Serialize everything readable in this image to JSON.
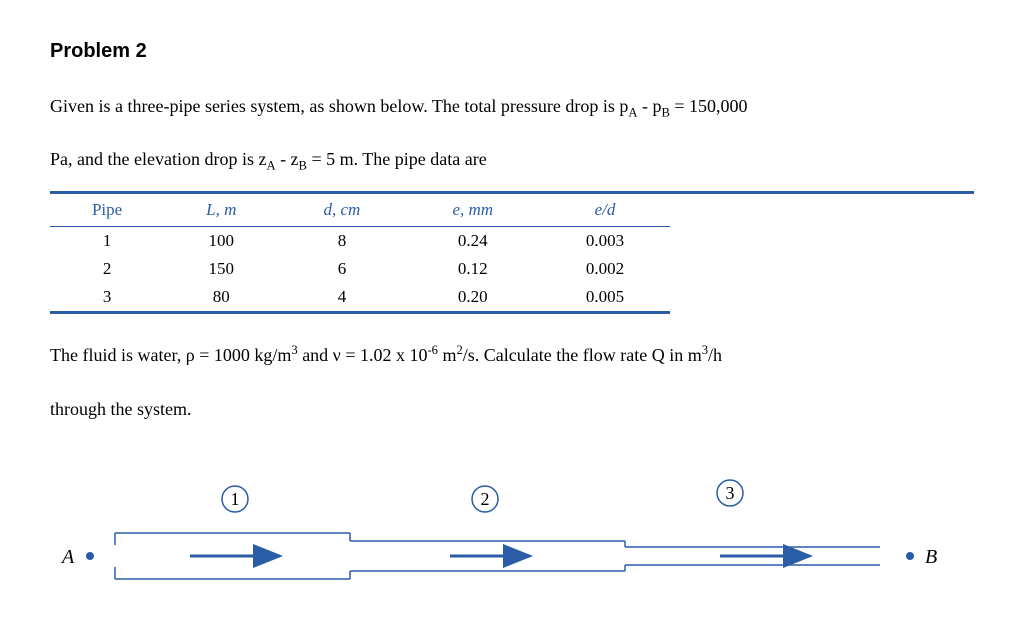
{
  "title": "Problem 2",
  "para1_pre": "Given is a three-pipe series system, as shown below. The total pressure drop is p",
  "para1_subA": "A",
  "para1_mid1": " - p",
  "para1_subB": "B",
  "para1_mid2": " = ",
  "para1_val": "150,000",
  "para2_pre": "Pa, and the elevation drop is z",
  "para2_subA": "A",
  "para2_mid1": " - z",
  "para2_subB": "B",
  "para2_mid2": " = ",
  "para2_val": "5 m",
  "para2_end": ". The pipe data are",
  "table": {
    "columns": [
      "Pipe",
      "L, m",
      "d, cm",
      "e, mm",
      "e/d"
    ],
    "rows": [
      [
        "1",
        "100",
        "8",
        "0.24",
        "0.003"
      ],
      [
        "2",
        "150",
        "6",
        "0.12",
        "0.002"
      ],
      [
        "3",
        "80",
        "4",
        "0.20",
        "0.005"
      ]
    ],
    "border_color": "#2a5ca8",
    "header_color": "#2a5ca8"
  },
  "para3_pre": "The fluid is water, ρ = ",
  "para3_rho": "1000 kg/m",
  "para3_sup3a": "3",
  "para3_mid1": " and ν = ",
  "para3_nu": "1.02 x 10",
  "para3_supm6": "-6",
  "para3_mid2": " m",
  "para3_sup2": "2",
  "para3_mid3": "/s. Calculate the flow rate Q in m",
  "para3_sup3b": "3",
  "para3_end": "/h",
  "para4": "through the system.",
  "diagram": {
    "labels": {
      "A": "A",
      "B": "B",
      "n1": "1",
      "n2": "2",
      "n3": "3"
    },
    "line_color": "#2a5ca8",
    "arrow_color": "#2a5ca8",
    "dot_color": "#2a5ca8",
    "text_color": "#000000"
  }
}
